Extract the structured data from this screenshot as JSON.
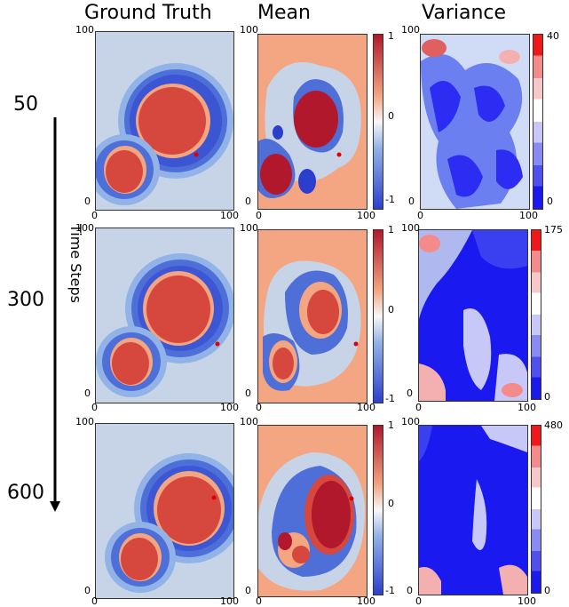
{
  "columns": [
    "Ground Truth",
    "Mean",
    "Variance"
  ],
  "time_axis_label": "Time Steps",
  "time_steps": [
    "50",
    "300",
    "600"
  ],
  "axis_ticks": {
    "min": "0",
    "max": "100"
  },
  "mean_colorbar_ticks": [
    "1",
    "0",
    "-1"
  ],
  "variance_colorbar_max": [
    "40",
    "175",
    "480"
  ],
  "variance_colorbar_min": "0",
  "colors": {
    "red_dark": "#b2182b",
    "red": "#d6473d",
    "salmon": "#f4a582",
    "light": "#f7f7f7",
    "pale_blue": "#c7d4e8",
    "blue_light": "#92b3e8",
    "blue": "#4f6fd8",
    "blue_dark": "#2b3fcf",
    "var_blue": "#2c2cf2"
  }
}
